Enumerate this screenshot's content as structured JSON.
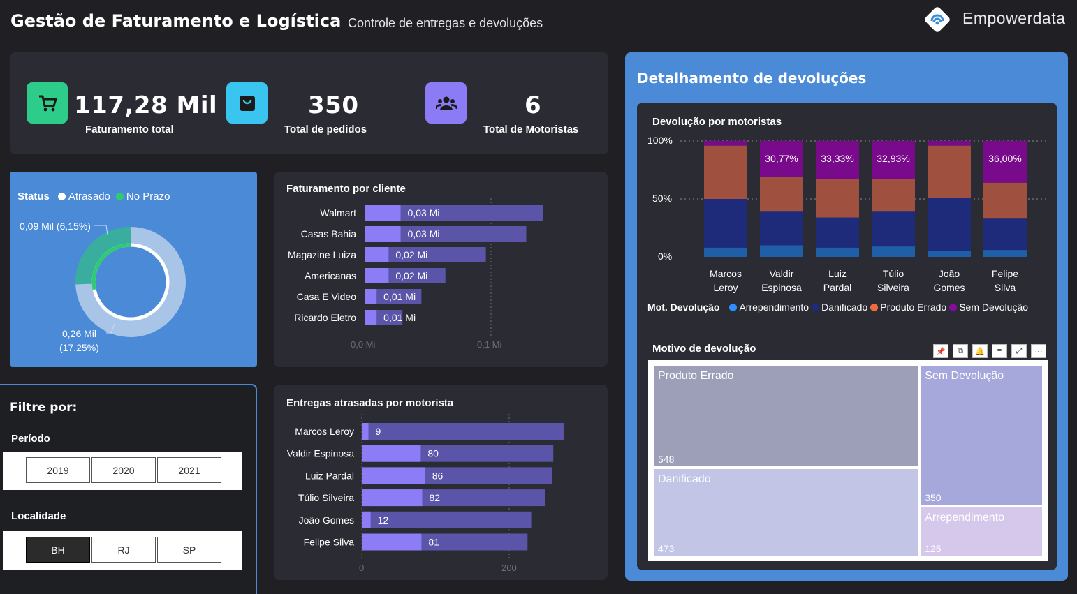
{
  "header": {
    "title": "Gestão de Faturamento e Logística",
    "subtitle": "Controle de entregas e devoluções",
    "brand": "Empowerdata"
  },
  "kpis": [
    {
      "value": "117,28 Mil",
      "label": "Faturamento total",
      "icon": "cart-icon",
      "color": "#2ecc8b"
    },
    {
      "value": "350",
      "label": "Total de pedidos",
      "icon": "bag-icon",
      "color": "#39c5f0"
    },
    {
      "value": "6",
      "label": "Total de Motoristas",
      "icon": "users-icon",
      "color": "#8b7cf6"
    }
  ],
  "status": {
    "title": "Status",
    "legend": [
      {
        "name": "Atrasado",
        "color": "#ffffff"
      },
      {
        "name": "No Prazo",
        "color": "#2ecc71"
      }
    ],
    "label_small": "0,09 Mil (6,15%)",
    "label_large_1": "0,26 Mil",
    "label_large_2": "(17,25%)"
  },
  "filters": {
    "title": "Filtre por:",
    "period_title": "Período",
    "periods": [
      "2019",
      "2020",
      "2021"
    ],
    "location_title": "Localidade",
    "locations": [
      "BH",
      "RJ",
      "SP"
    ],
    "selected_location": "BH"
  },
  "fat_cliente": {
    "title": "Faturamento por cliente",
    "axis_labels": [
      "0,0 Mi",
      "0,1 Mi"
    ]
  },
  "entregas": {
    "title": "Entregas atrasadas por motorista",
    "axis_labels": [
      "0",
      "200"
    ]
  },
  "devolucoes": {
    "title": "Detalhamento de devoluções",
    "chart_title": "Devolução por motoristas",
    "y_ticks": [
      "100%",
      "50%",
      "0%"
    ],
    "legend_title": "Mot. Devolução",
    "treemap_title": "Motivo de devolução"
  },
  "chart_data": [
    {
      "type": "pie",
      "title": "Status",
      "labels": [
        "Atrasado",
        "No Prazo"
      ],
      "values": [
        0.26,
        0.09
      ],
      "colors": [
        "#a8c5e8",
        "#2ecc71"
      ]
    },
    {
      "type": "bar",
      "title": "Faturamento por cliente",
      "categories": [
        "Walmart",
        "Casas Bahia",
        "Magazine Luiza",
        "Americanas",
        "Casa E Video",
        "Ricardo Eletro"
      ],
      "values": [
        0.03,
        0.03,
        0.02,
        0.02,
        0.01,
        0.01
      ],
      "value_labels": [
        "0,03 Mi",
        "0,03 Mi",
        "0,02 Mi",
        "0,02 Mi",
        "0,01 Mi",
        "0,01 Mi"
      ],
      "totals": [
        0.141,
        0.128,
        0.096,
        0.064,
        0.045,
        0.03
      ],
      "xlim": [
        0,
        0.141
      ]
    },
    {
      "type": "bar",
      "title": "Entregas atrasadas por motorista",
      "categories": [
        "Marcos Leroy",
        "Valdir Espinosa",
        "Luiz Pardal",
        "Túlio Silveira",
        "João Gomes",
        "Felipe Silva"
      ],
      "values": [
        9,
        80,
        86,
        82,
        12,
        81
      ],
      "totals": [
        274,
        260,
        258,
        249,
        230,
        225
      ],
      "xlim": [
        0,
        274
      ]
    },
    {
      "type": "bar",
      "stacked": true,
      "title": "Devolução por motoristas",
      "categories": [
        "Marcos Leroy",
        "Valdir Espinosa",
        "Luiz Pardal",
        "Túlio Silveira",
        "João Gomes",
        "Felipe Silva"
      ],
      "series": [
        {
          "name": "Arrependimento",
          "color": "#1f5fa8",
          "values": [
            8,
            10,
            8,
            9,
            5,
            6
          ]
        },
        {
          "name": "Danificado",
          "color": "#1e2a7a",
          "values": [
            42,
            29,
            26,
            30,
            46,
            27
          ]
        },
        {
          "name": "Produto Errado",
          "color": "#a0503e",
          "values": [
            46,
            30,
            33,
            28,
            45,
            31
          ]
        },
        {
          "name": "Sem Devolução",
          "color": "#7a0a8c",
          "values": [
            4,
            31,
            33,
            33,
            4,
            36
          ]
        }
      ],
      "data_labels": [
        "",
        "30,77%",
        "33,33%",
        "32,93%",
        "",
        "36,00%"
      ],
      "ylim": [
        0,
        100
      ]
    },
    {
      "type": "treemap",
      "title": "Motivo de devolução",
      "categories": [
        "Produto Errado",
        "Danificado",
        "Sem Devolução",
        "Arrependimento"
      ],
      "values": [
        548,
        473,
        350,
        125
      ],
      "colors": [
        "#9d9fb8",
        "#c3c5e6",
        "#a6a8dc",
        "#d6c8ea"
      ]
    }
  ]
}
